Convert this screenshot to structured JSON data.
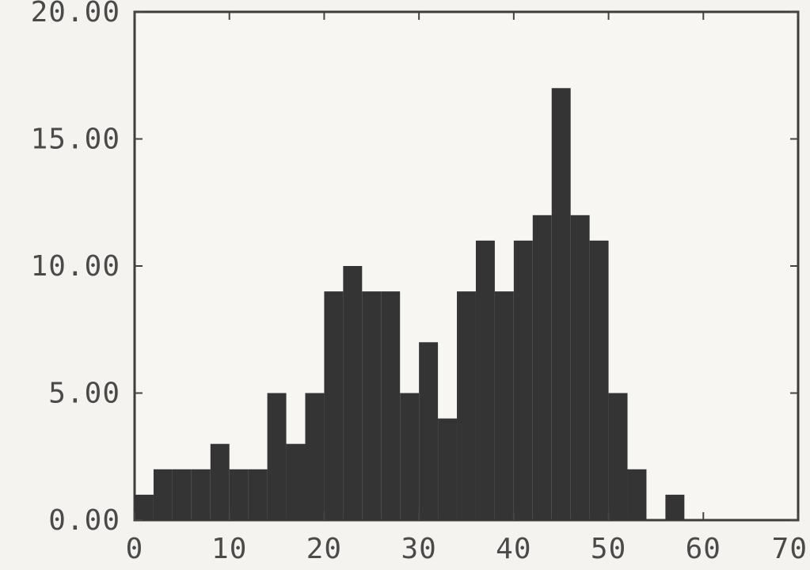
{
  "chart_data": {
    "type": "bar",
    "title": "",
    "xlabel": "",
    "ylabel": "",
    "xlim": [
      0,
      70
    ],
    "ylim": [
      0,
      20
    ],
    "grid": false,
    "x_ticks": [
      "0",
      "10",
      "20",
      "30",
      "40",
      "50",
      "60",
      "70"
    ],
    "y_ticks": [
      "0.00",
      "5.00",
      "10.00",
      "15.00",
      "20.00"
    ],
    "bin_width": 2,
    "series": [
      {
        "x_start": [
          0,
          2,
          4,
          6,
          8,
          10,
          12,
          14,
          16,
          18,
          20,
          22,
          24,
          26,
          28,
          30,
          32,
          34,
          36,
          38,
          40,
          42,
          44,
          46,
          48,
          50,
          52,
          54,
          56,
          58
        ],
        "values": [
          1,
          2,
          2,
          2,
          3,
          2,
          2,
          5,
          3,
          5,
          9,
          10,
          9,
          9,
          5,
          7,
          4,
          9,
          11,
          9,
          11,
          12,
          17,
          12,
          11,
          5,
          2,
          0,
          1,
          0
        ]
      }
    ],
    "colors": {
      "bars": "#343434",
      "frame": "#3d3d3d",
      "background": "#f4f3ef"
    }
  }
}
